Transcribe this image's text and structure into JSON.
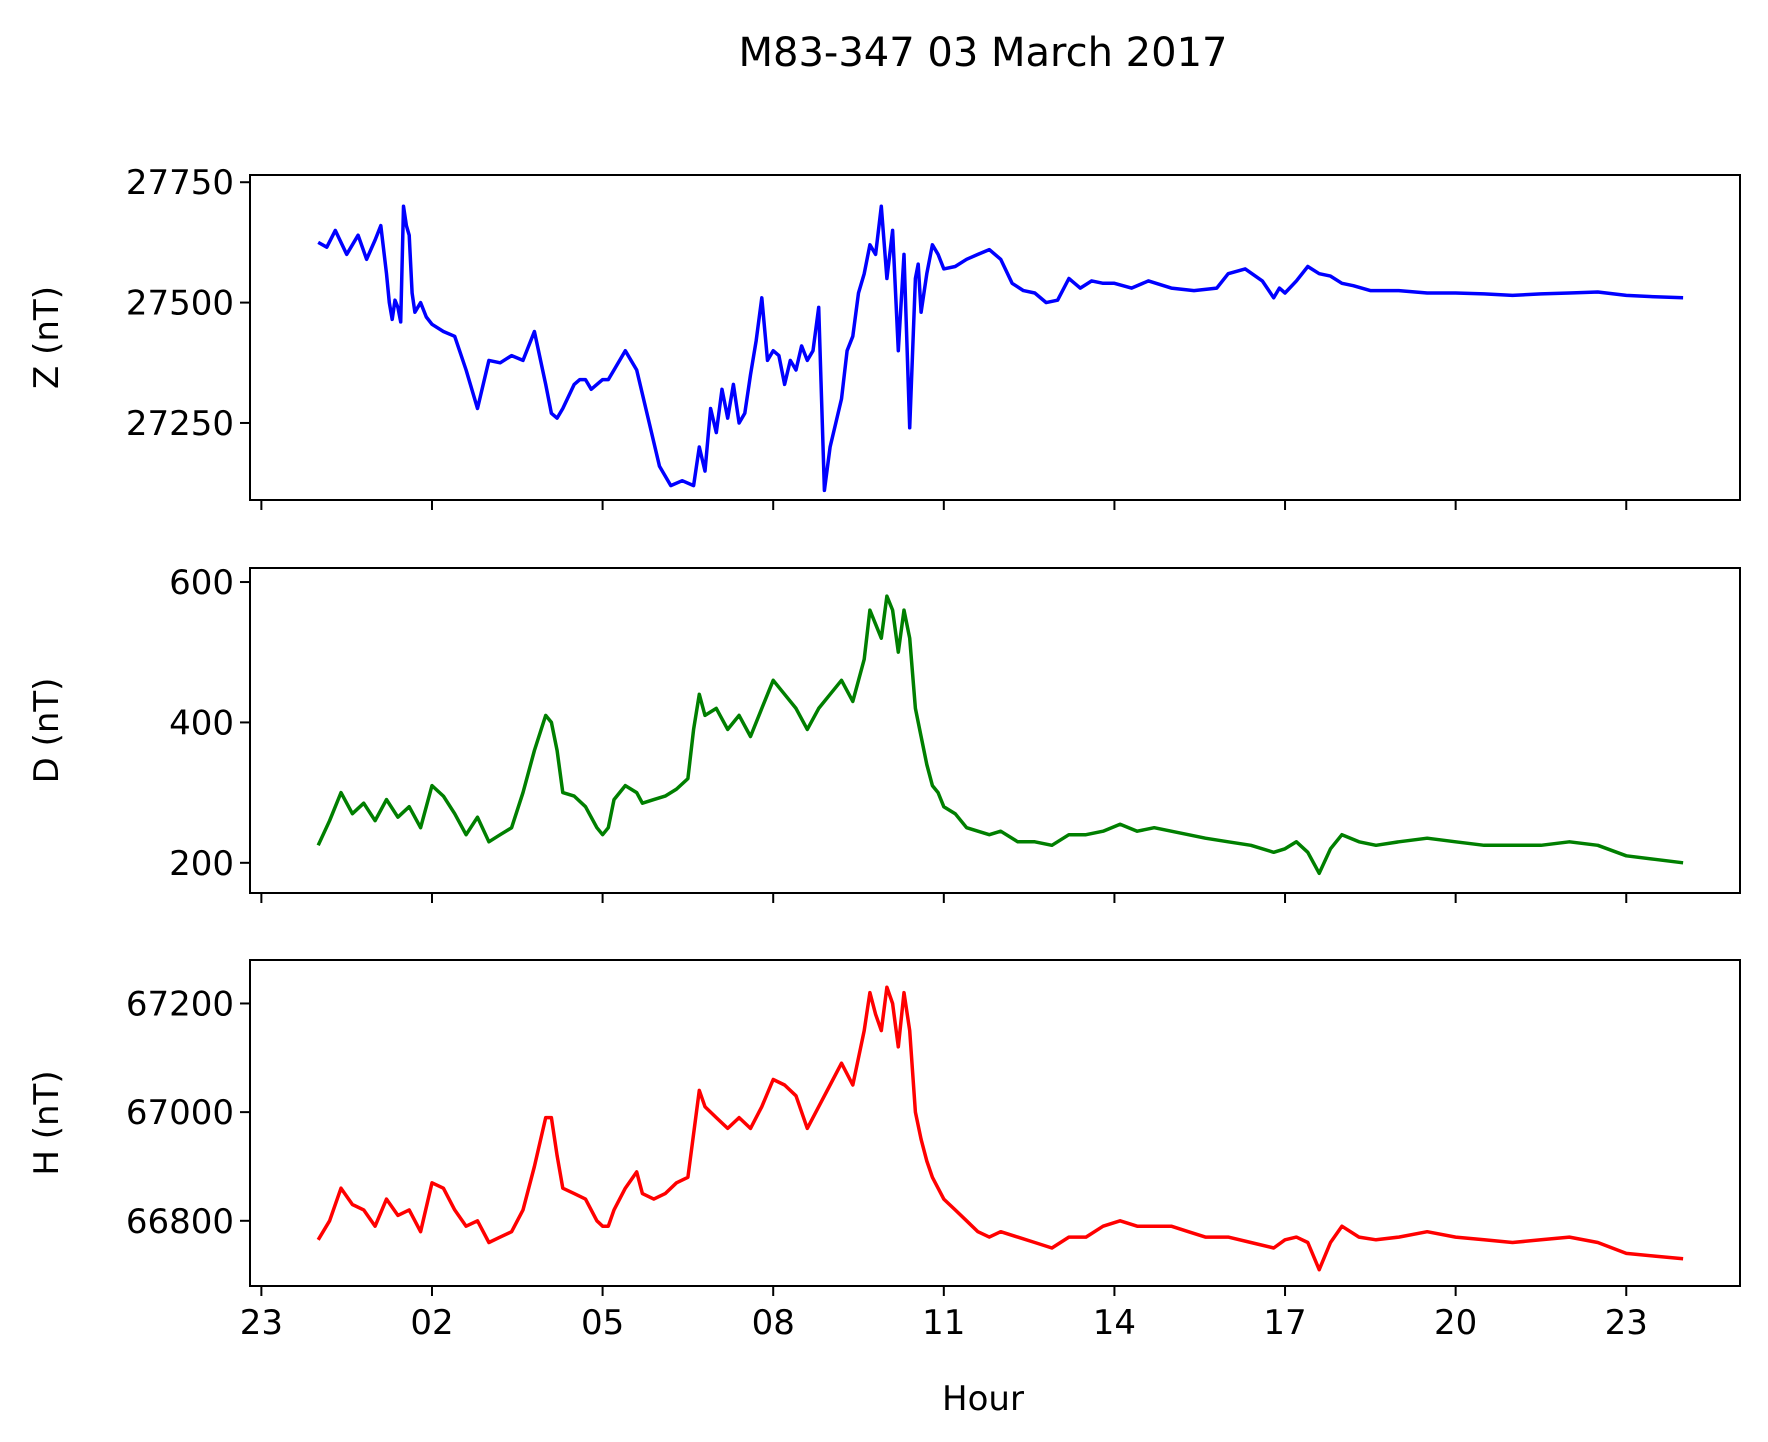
{
  "title": "M83-347 03 March 2017",
  "xlabel": "Hour",
  "x_tick_labels": [
    "23",
    "02",
    "05",
    "08",
    "11",
    "14",
    "17",
    "20",
    "23"
  ],
  "chart_data": [
    {
      "type": "line",
      "ylabel": "Z (nT)",
      "color": "#0000ff",
      "ylim": [
        27090,
        27765
      ],
      "y_ticks": [
        27250,
        27500,
        27750
      ],
      "xlim_hours": [
        -1.2,
        25.0
      ],
      "series": [
        {
          "x": [
            0.0,
            0.15,
            0.3,
            0.5,
            0.7,
            0.85,
            1.0,
            1.1,
            1.2,
            1.25,
            1.3,
            1.35,
            1.4,
            1.45,
            1.5,
            1.55,
            1.6,
            1.65,
            1.7,
            1.8,
            1.9,
            2.0,
            2.2,
            2.4,
            2.6,
            2.8,
            3.0,
            3.2,
            3.4,
            3.6,
            3.8,
            4.0,
            4.1,
            4.2,
            4.3,
            4.5,
            4.6,
            4.7,
            4.8,
            4.9,
            5.0,
            5.1,
            5.2,
            5.4,
            5.6,
            5.8,
            6.0,
            6.2,
            6.4,
            6.6,
            6.7,
            6.8,
            6.9,
            7.0,
            7.1,
            7.2,
            7.3,
            7.4,
            7.5,
            7.6,
            7.7,
            7.8,
            7.9,
            8.0,
            8.1,
            8.2,
            8.3,
            8.4,
            8.5,
            8.6,
            8.7,
            8.8,
            8.9,
            9.0,
            9.1,
            9.2,
            9.3,
            9.4,
            9.5,
            9.6,
            9.7,
            9.8,
            9.9,
            10.0,
            10.1,
            10.2,
            10.3,
            10.4,
            10.5,
            10.55,
            10.6,
            10.7,
            10.8,
            10.9,
            11.0,
            11.2,
            11.4,
            11.6,
            11.8,
            12.0,
            12.2,
            12.4,
            12.6,
            12.8,
            13.0,
            13.2,
            13.3,
            13.4,
            13.6,
            13.8,
            14.0,
            14.3,
            14.6,
            15.0,
            15.4,
            15.8,
            16.0,
            16.3,
            16.6,
            16.8,
            16.9,
            17.0,
            17.2,
            17.4,
            17.6,
            17.8,
            18.0,
            18.2,
            18.5,
            19.0,
            19.5,
            20.0,
            20.5,
            21.0,
            21.5,
            22.0,
            22.5,
            23.0,
            23.5,
            24.0
          ],
          "values": [
            27625,
            27615,
            27650,
            27600,
            27640,
            27590,
            27630,
            27660,
            27560,
            27500,
            27465,
            27505,
            27490,
            27460,
            27700,
            27660,
            27640,
            27520,
            27480,
            27500,
            27470,
            27455,
            27440,
            27430,
            27360,
            27280,
            27380,
            27375,
            27390,
            27380,
            27440,
            27330,
            27270,
            27260,
            27280,
            27330,
            27340,
            27340,
            27320,
            27330,
            27340,
            27340,
            27360,
            27400,
            27360,
            27260,
            27160,
            27120,
            27130,
            27120,
            27200,
            27150,
            27280,
            27230,
            27320,
            27260,
            27330,
            27250,
            27270,
            27350,
            27420,
            27510,
            27380,
            27400,
            27390,
            27330,
            27380,
            27360,
            27410,
            27380,
            27400,
            27490,
            27110,
            27200,
            27250,
            27300,
            27400,
            27430,
            27520,
            27560,
            27620,
            27600,
            27700,
            27550,
            27650,
            27400,
            27600,
            27240,
            27550,
            27580,
            27480,
            27560,
            27620,
            27600,
            27570,
            27575,
            27590,
            27600,
            27610,
            27590,
            27540,
            27525,
            27520,
            27500,
            27505,
            27550,
            27540,
            27530,
            27545,
            27540,
            27540,
            27530,
            27545,
            27530,
            27525,
            27530,
            27560,
            27570,
            27545,
            27510,
            27530,
            27520,
            27545,
            27575,
            27560,
            27555,
            27540,
            27535,
            27525,
            27525,
            27520,
            27520,
            27518,
            27515,
            27518,
            27520,
            27522,
            27515,
            27512,
            27510
          ],
          "envelope_note": ""
        }
      ]
    },
    {
      "type": "line",
      "ylabel": "D (nT)",
      "color": "#007f00",
      "ylim": [
        157,
        620
      ],
      "y_ticks": [
        200,
        400,
        600
      ],
      "xlim_hours": [
        -1.2,
        25.0
      ],
      "series": [
        {
          "x": [
            0.0,
            0.2,
            0.4,
            0.6,
            0.8,
            1.0,
            1.2,
            1.4,
            1.6,
            1.8,
            2.0,
            2.2,
            2.4,
            2.6,
            2.8,
            3.0,
            3.2,
            3.4,
            3.6,
            3.8,
            4.0,
            4.1,
            4.2,
            4.3,
            4.5,
            4.7,
            4.9,
            5.0,
            5.1,
            5.2,
            5.4,
            5.6,
            5.7,
            5.9,
            6.1,
            6.3,
            6.5,
            6.6,
            6.7,
            6.8,
            7.0,
            7.2,
            7.4,
            7.6,
            7.8,
            8.0,
            8.2,
            8.4,
            8.6,
            8.8,
            9.0,
            9.2,
            9.4,
            9.6,
            9.7,
            9.8,
            9.9,
            10.0,
            10.1,
            10.2,
            10.3,
            10.4,
            10.5,
            10.6,
            10.7,
            10.8,
            10.9,
            11.0,
            11.2,
            11.4,
            11.6,
            11.8,
            12.0,
            12.3,
            12.6,
            12.9,
            13.2,
            13.5,
            13.8,
            14.1,
            14.4,
            14.7,
            15.0,
            15.3,
            15.6,
            16.0,
            16.4,
            16.8,
            17.0,
            17.2,
            17.4,
            17.6,
            17.8,
            18.0,
            18.3,
            18.6,
            19.0,
            19.5,
            20.0,
            20.5,
            21.0,
            21.5,
            22.0,
            22.5,
            23.0,
            23.5,
            24.0
          ],
          "values": [
            225,
            260,
            300,
            270,
            285,
            260,
            290,
            265,
            280,
            250,
            310,
            295,
            270,
            240,
            265,
            230,
            240,
            250,
            300,
            360,
            410,
            400,
            360,
            300,
            295,
            280,
            250,
            240,
            250,
            290,
            310,
            300,
            285,
            290,
            295,
            305,
            320,
            390,
            440,
            410,
            420,
            390,
            410,
            380,
            420,
            460,
            440,
            420,
            390,
            420,
            440,
            460,
            430,
            490,
            560,
            540,
            520,
            580,
            560,
            500,
            560,
            520,
            420,
            380,
            340,
            310,
            300,
            280,
            270,
            250,
            245,
            240,
            245,
            230,
            230,
            225,
            240,
            240,
            245,
            255,
            245,
            250,
            245,
            240,
            235,
            230,
            225,
            215,
            220,
            230,
            215,
            185,
            220,
            240,
            230,
            225,
            230,
            235,
            230,
            225,
            225,
            225,
            230,
            225,
            210,
            205,
            200
          ]
        }
      ]
    },
    {
      "type": "line",
      "ylabel": "H (nT)",
      "color": "#ff0000",
      "ylim": [
        66680,
        67280
      ],
      "y_ticks": [
        66800,
        67000,
        67200
      ],
      "xlim_hours": [
        -1.2,
        25.0
      ],
      "series": [
        {
          "x": [
            0.0,
            0.2,
            0.4,
            0.6,
            0.8,
            1.0,
            1.2,
            1.4,
            1.6,
            1.8,
            2.0,
            2.2,
            2.4,
            2.6,
            2.8,
            3.0,
            3.2,
            3.4,
            3.6,
            3.8,
            4.0,
            4.1,
            4.2,
            4.3,
            4.5,
            4.7,
            4.9,
            5.0,
            5.1,
            5.2,
            5.4,
            5.6,
            5.7,
            5.9,
            6.1,
            6.3,
            6.5,
            6.6,
            6.7,
            6.8,
            7.0,
            7.2,
            7.4,
            7.6,
            7.8,
            8.0,
            8.2,
            8.4,
            8.6,
            8.8,
            9.0,
            9.2,
            9.4,
            9.6,
            9.7,
            9.8,
            9.9,
            10.0,
            10.1,
            10.2,
            10.3,
            10.4,
            10.5,
            10.6,
            10.7,
            10.8,
            10.9,
            11.0,
            11.2,
            11.4,
            11.6,
            11.8,
            12.0,
            12.3,
            12.6,
            12.9,
            13.2,
            13.5,
            13.8,
            14.1,
            14.4,
            14.7,
            15.0,
            15.3,
            15.6,
            16.0,
            16.4,
            16.8,
            17.0,
            17.2,
            17.4,
            17.6,
            17.8,
            18.0,
            18.3,
            18.6,
            19.0,
            19.5,
            20.0,
            20.5,
            21.0,
            21.5,
            22.0,
            22.5,
            23.0,
            23.5,
            24.0
          ],
          "values": [
            66765,
            66800,
            66860,
            66830,
            66820,
            66790,
            66840,
            66810,
            66820,
            66780,
            66870,
            66860,
            66820,
            66790,
            66800,
            66760,
            66770,
            66780,
            66820,
            66900,
            66990,
            66990,
            66920,
            66860,
            66850,
            66840,
            66800,
            66790,
            66790,
            66820,
            66860,
            66890,
            66850,
            66840,
            66850,
            66870,
            66880,
            66960,
            67040,
            67010,
            66990,
            66970,
            66990,
            66970,
            67010,
            67060,
            67050,
            67030,
            66970,
            67010,
            67050,
            67090,
            67050,
            67150,
            67220,
            67180,
            67150,
            67230,
            67200,
            67120,
            67220,
            67150,
            67000,
            66950,
            66910,
            66880,
            66860,
            66840,
            66820,
            66800,
            66780,
            66770,
            66780,
            66770,
            66760,
            66750,
            66770,
            66770,
            66790,
            66800,
            66790,
            66790,
            66790,
            66780,
            66770,
            66770,
            66760,
            66750,
            66765,
            66770,
            66760,
            66710,
            66760,
            66790,
            66770,
            66765,
            66770,
            66780,
            66770,
            66765,
            66760,
            66765,
            66770,
            66760,
            66740,
            66735,
            66730
          ]
        }
      ]
    }
  ]
}
